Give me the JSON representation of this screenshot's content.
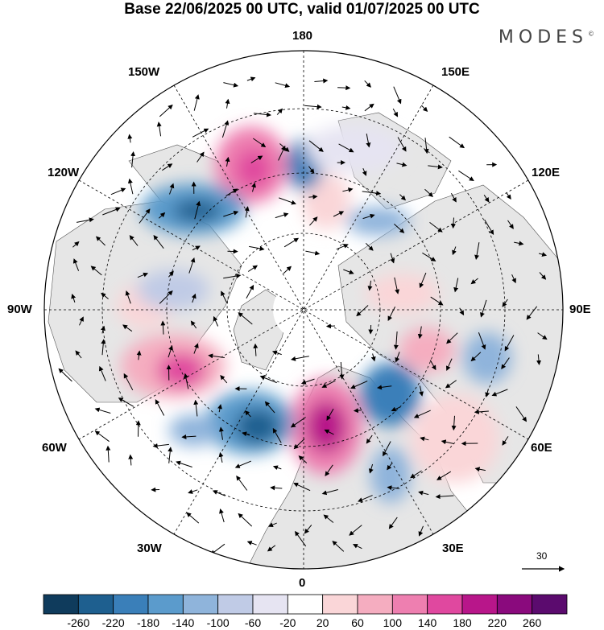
{
  "header": {
    "title": "Base 22/06/2025 00 UTC, valid 01/07/2025 00 UTC",
    "brand": "MODES",
    "brand_mark": "©"
  },
  "map": {
    "projection": "north-polar-stereographic",
    "meridian_labels": {
      "top": "180",
      "bottom": "0",
      "left": "90W",
      "right": "90E",
      "top_left": "150W",
      "upper_left": "120W",
      "lower_left": "60W",
      "bottom_left": "30W",
      "top_right": "150E",
      "upper_right": "120E",
      "lower_right": "60E",
      "bottom_right": "30E"
    },
    "land_color": "#e6e6e6",
    "ocean_color": "#ffffff",
    "anomaly_features": [
      {
        "name": "europe-positive",
        "sign": "positive",
        "magnitude": 240
      },
      {
        "name": "north-atlantic-negative",
        "sign": "negative",
        "magnitude": 220
      },
      {
        "name": "canada-east-positive",
        "sign": "positive",
        "magnitude": 180
      },
      {
        "name": "alaska-positive",
        "sign": "positive",
        "magnitude": 160
      },
      {
        "name": "northeast-pacific-negative",
        "sign": "negative",
        "magnitude": 200
      },
      {
        "name": "russia-west-negative",
        "sign": "negative",
        "magnitude": 180
      },
      {
        "name": "caspian-positive",
        "sign": "positive",
        "magnitude": 100
      },
      {
        "name": "east-siberian-negative",
        "sign": "negative",
        "magnitude": 160
      }
    ]
  },
  "wind_scale": {
    "value": "30"
  },
  "colorbar": {
    "ticks": [
      "-260",
      "-220",
      "-180",
      "-140",
      "-100",
      "-60",
      "-20",
      "20",
      "60",
      "100",
      "140",
      "180",
      "220",
      "260"
    ],
    "colors": [
      "#0f3b5c",
      "#1e5f8f",
      "#3a7fb9",
      "#5b9bcc",
      "#8fb4db",
      "#c0cbe6",
      "#e6e4f2",
      "#ffffff",
      "#fad6d8",
      "#f5adc0",
      "#ee7fb0",
      "#e0489f",
      "#b8168a",
      "#8a0a7d",
      "#5b0b6e"
    ]
  }
}
